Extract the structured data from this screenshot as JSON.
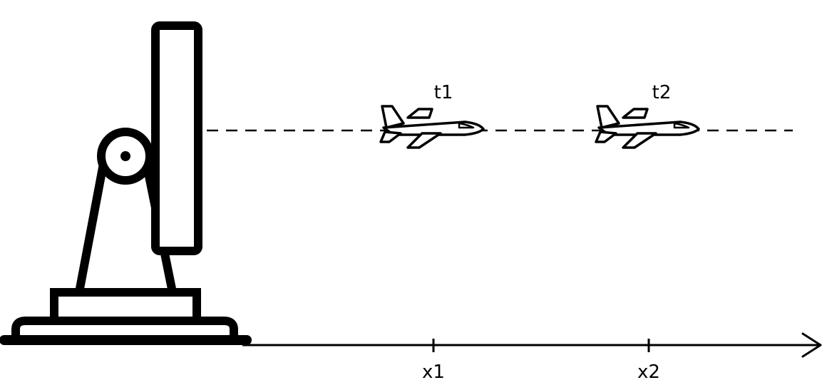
{
  "time_labels": {
    "t1": "t1",
    "t2": "t2"
  },
  "axis_labels": {
    "x1": "x1",
    "x2": "x2"
  },
  "colors": {
    "ink": "#000000",
    "background": "#ffffff",
    "plane_fill": "#ffffff"
  },
  "icons": {
    "radar": "radar-antenna-icon",
    "plane": "airplane-icon"
  }
}
